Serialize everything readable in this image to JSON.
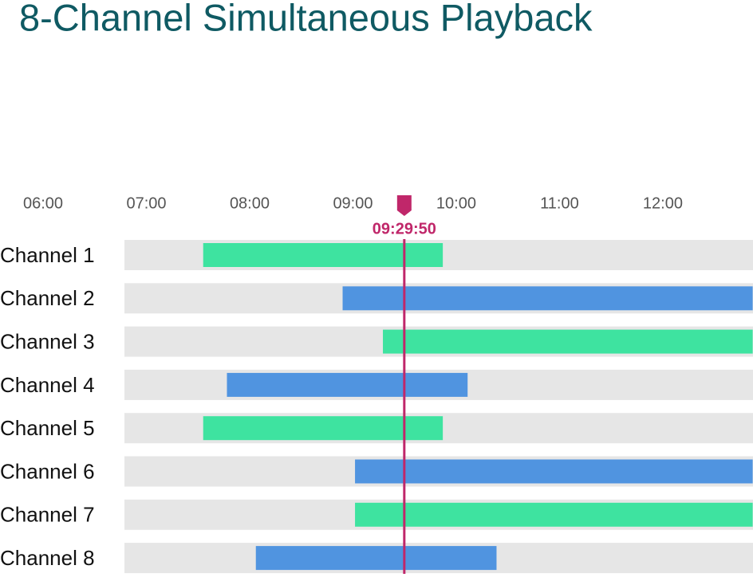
{
  "chart_data": {
    "type": "timeline",
    "title": "8-Channel Simultaneous Playback",
    "categories": [
      "Channel 1",
      "Channel 2",
      "Channel 3",
      "Channel 4",
      "Channel 5",
      "Channel 6",
      "Channel 7",
      "Channel 8"
    ],
    "start": [
      7.55,
      8.9,
      9.29,
      7.78,
      7.55,
      9.02,
      9.02,
      8.06
    ],
    "end": [
      9.87,
      12.87,
      12.87,
      10.11,
      9.87,
      12.87,
      12.87,
      10.39
    ],
    "colors": [
      "#3ee3a0",
      "#5094e0",
      "#3ee3a0",
      "#5094e0",
      "#3ee3a0",
      "#5094e0",
      "#3ee3a0",
      "#5094e0"
    ],
    "xlim": [
      5.583,
      12.873
    ],
    "xticks": [
      {
        "value": 6,
        "label": "06:00"
      },
      {
        "value": 7,
        "label": "07:00"
      },
      {
        "value": 8,
        "label": "08:00"
      },
      {
        "value": 9,
        "label": "09:00"
      },
      {
        "value": 10,
        "label": "10:00"
      },
      {
        "value": 11,
        "label": "11:00"
      },
      {
        "value": 12,
        "label": "12:00"
      }
    ],
    "cursor": {
      "value": 9.497,
      "label": "09:29:50",
      "color": "#c0276a"
    }
  }
}
